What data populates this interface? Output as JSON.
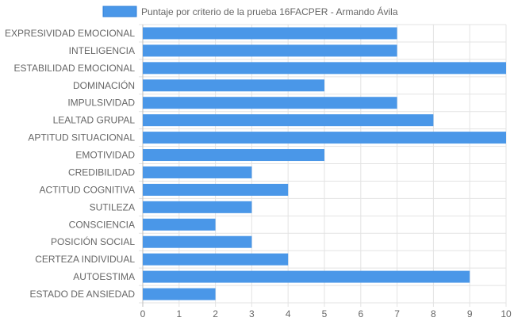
{
  "chart_data": {
    "type": "bar",
    "orientation": "horizontal",
    "legend": {
      "position": "top",
      "color": "#4a97e8",
      "border_color": "#2f7fd8"
    },
    "series": [
      {
        "name": "Puntaje por criterio de la prueba 16FACPER - Armando Ávila",
        "values": [
          7,
          7,
          10,
          5,
          7,
          8,
          10,
          5,
          3,
          4,
          3,
          2,
          3,
          4,
          9,
          2
        ]
      }
    ],
    "categories": [
      "EXPRESIVIDAD EMOCIONAL",
      "INTELIGENCIA",
      "ESTABILIDAD EMOCIONAL",
      "DOMINACIÓN",
      "IMPULSIVIDAD",
      "LEALTAD GRUPAL",
      "APTITUD SITUACIONAL",
      "EMOTIVIDAD",
      "CREDIBILIDAD",
      "ACTITUD COGNITIVA",
      "SUTILEZA",
      "CONSCIENCIA",
      "POSICIÓN SOCIAL",
      "CERTEZA INDIVIDUAL",
      "AUTOESTIMA",
      "ESTADO DE ANSIEDAD"
    ],
    "xlim": [
      0,
      10
    ],
    "xticks": [
      "0",
      "1",
      "2",
      "3",
      "4",
      "5",
      "6",
      "7",
      "8",
      "9",
      "10"
    ],
    "grid": true,
    "colors": {
      "bar": "#4a97e8",
      "grid": "#e3e3e3",
      "axis": "#bdbdbd",
      "label": "#666666"
    }
  }
}
